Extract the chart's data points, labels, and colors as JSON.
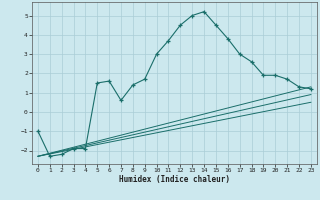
{
  "xlabel": "Humidex (Indice chaleur)",
  "background_color": "#cce8ee",
  "grid_color": "#aacdd6",
  "line_color": "#1a6e6a",
  "xlim": [
    -0.5,
    23.5
  ],
  "ylim": [
    -2.7,
    5.7
  ],
  "yticks": [
    -2,
    -1,
    0,
    1,
    2,
    3,
    4,
    5
  ],
  "xticks": [
    0,
    1,
    2,
    3,
    4,
    5,
    6,
    7,
    8,
    9,
    10,
    11,
    12,
    13,
    14,
    15,
    16,
    17,
    18,
    19,
    20,
    21,
    22,
    23
  ],
  "main_x": [
    0,
    1,
    2,
    3,
    4,
    5,
    6,
    7,
    8,
    9,
    10,
    11,
    12,
    13,
    14,
    15,
    16,
    17,
    18,
    19,
    20,
    21,
    22,
    23
  ],
  "main_y": [
    -1.0,
    -2.3,
    -2.2,
    -1.9,
    -1.9,
    1.5,
    1.6,
    0.6,
    1.4,
    1.7,
    3.0,
    3.7,
    4.5,
    5.0,
    5.2,
    4.5,
    3.8,
    3.0,
    2.6,
    1.9,
    1.9,
    1.7,
    1.3,
    1.2
  ],
  "line1_x": [
    0,
    23
  ],
  "line1_y": [
    -2.3,
    1.3
  ],
  "line2_x": [
    0,
    23
  ],
  "line2_y": [
    -2.3,
    0.9
  ],
  "line3_x": [
    0,
    23
  ],
  "line3_y": [
    -2.3,
    0.5
  ]
}
